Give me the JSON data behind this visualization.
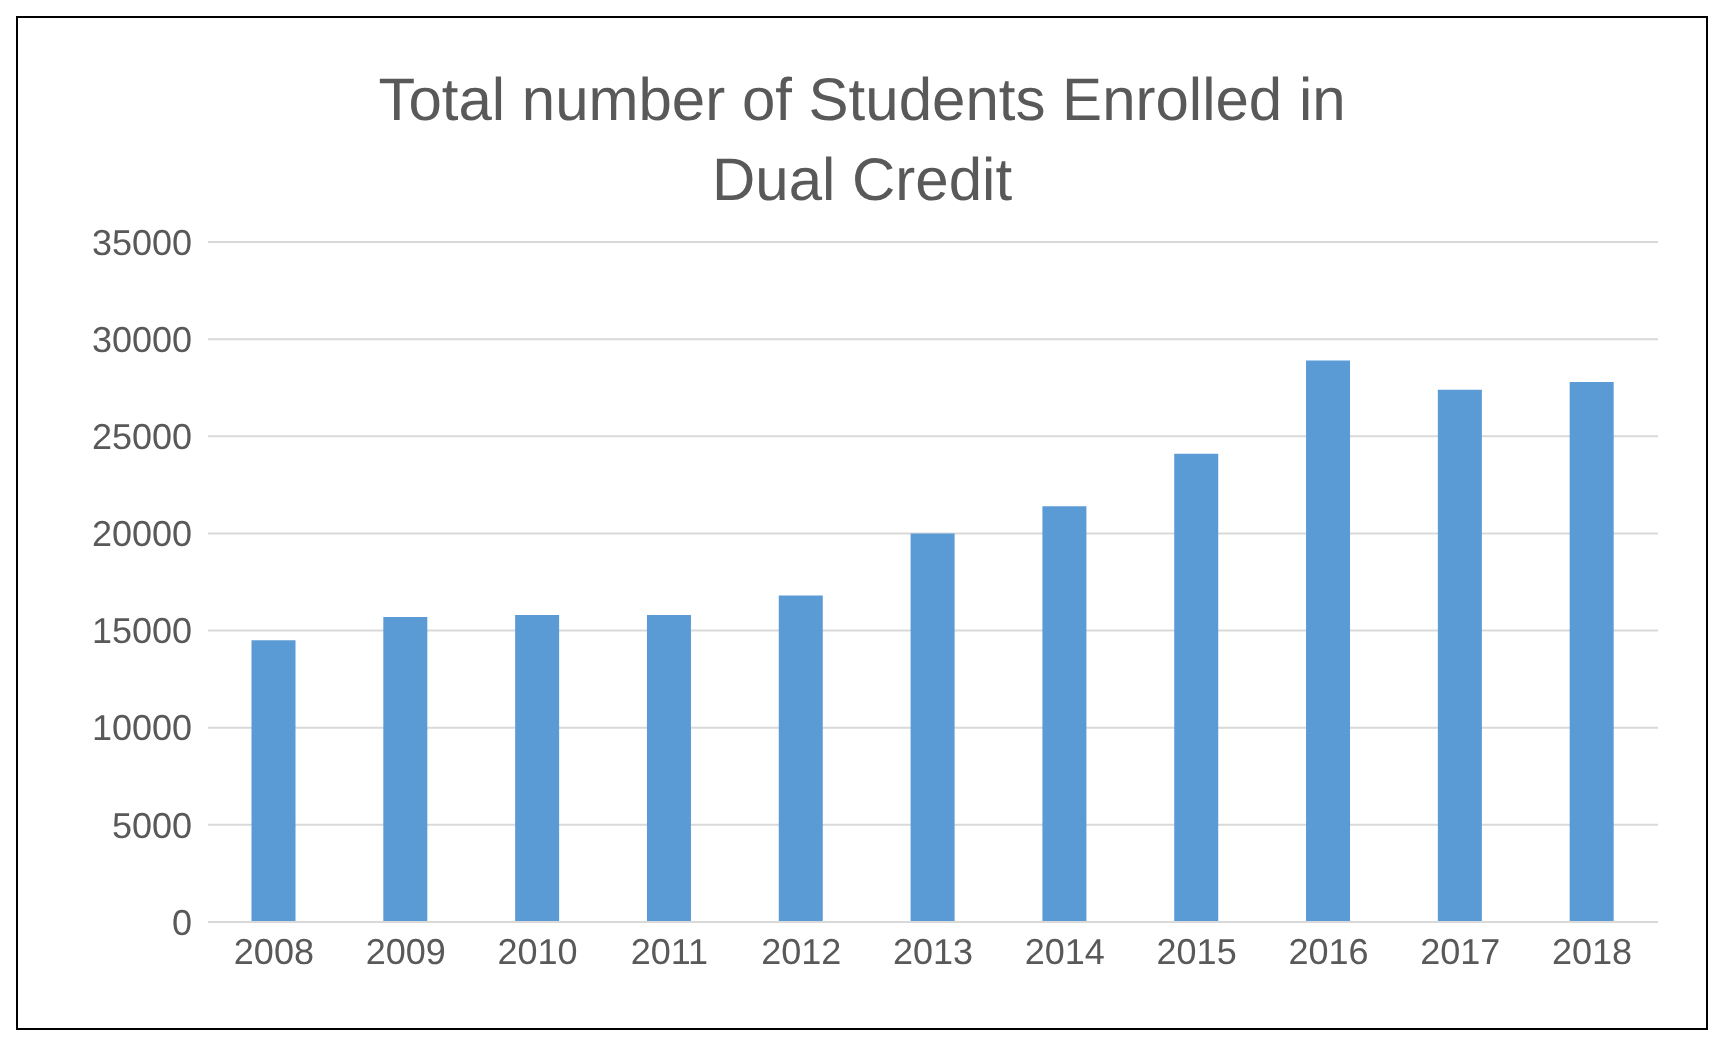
{
  "chart_data": {
    "type": "bar",
    "title": "Total number of Students Enrolled in Dual Credit",
    "categories": [
      "2008",
      "2009",
      "2010",
      "2011",
      "2012",
      "2013",
      "2014",
      "2015",
      "2016",
      "2017",
      "2018"
    ],
    "values": [
      14500,
      15700,
      15800,
      15800,
      16800,
      20000,
      21400,
      24100,
      28900,
      27400,
      27800
    ],
    "color": "#5b9bd5",
    "ylim": [
      0,
      35000
    ],
    "yticks": [
      0,
      5000,
      10000,
      15000,
      20000,
      25000,
      30000,
      35000
    ],
    "grid": "y"
  }
}
